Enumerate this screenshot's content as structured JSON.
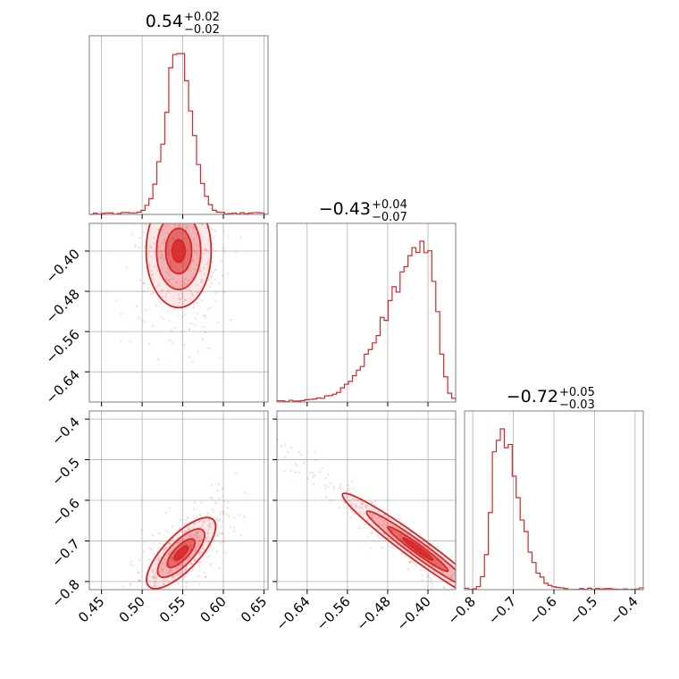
{
  "chart_data": {
    "type": "corner",
    "parameters": [
      {
        "median": 0.54,
        "plus": "+0.02",
        "minus": "−0.02",
        "title_main": "0.54",
        "title_plus": "+0.02",
        "title_minus": "−0.02",
        "range": [
          0.435,
          0.655
        ],
        "ticks": [
          0.45,
          0.5,
          0.55,
          0.6,
          0.65
        ],
        "tick_labels": [
          "0.45",
          "0.50",
          "0.55",
          "0.60",
          "0.65"
        ]
      },
      {
        "median": -0.43,
        "plus": "+0.04",
        "minus": "−0.07",
        "title_main": "−0.43",
        "title_plus": "+0.04",
        "title_minus": "−0.07",
        "range": [
          -0.7,
          -0.345
        ],
        "ticks": [
          -0.64,
          -0.56,
          -0.48,
          -0.4
        ],
        "tick_labels": [
          "−0.64",
          "−0.56",
          "−0.48",
          "−0.40"
        ]
      },
      {
        "median": -0.72,
        "plus": "+0.05",
        "minus": "−0.03",
        "title_main": "−0.72",
        "title_plus": "+0.05",
        "title_minus": "−0.03",
        "range": [
          -0.82,
          -0.38
        ],
        "ticks": [
          -0.8,
          -0.7,
          -0.6,
          -0.5,
          -0.4
        ],
        "tick_labels": [
          "−0.8",
          "−0.7",
          "−0.6",
          "−0.5",
          "−0.4"
        ]
      }
    ],
    "histograms": [
      {
        "param": 0,
        "mean": 0.545,
        "sigma": 0.016,
        "min_level": 0.0
      },
      {
        "param": 1,
        "mode": -0.4,
        "left_sigma": 0.075,
        "right_sigma": 0.018,
        "min_level": 0.0
      },
      {
        "param": 2,
        "mode": -0.735,
        "left_sigma": 0.018,
        "right_sigma": 0.045,
        "min_level": 0.0
      }
    ],
    "contour_panels": [
      {
        "x_param": 0,
        "y_param": 1,
        "center": [
          0.545,
          -0.4
        ],
        "spread": [
          0.016,
          0.045
        ],
        "correlation": 0.0
      },
      {
        "x_param": 0,
        "y_param": 2,
        "center": [
          0.548,
          -0.73
        ],
        "spread": [
          0.017,
          0.035
        ],
        "correlation": 0.75
      },
      {
        "x_param": 1,
        "y_param": 2,
        "center": [
          -0.42,
          -0.72
        ],
        "spread": [
          0.06,
          0.055
        ],
        "correlation": -0.97
      }
    ],
    "color": "#d62728",
    "grid": true
  }
}
